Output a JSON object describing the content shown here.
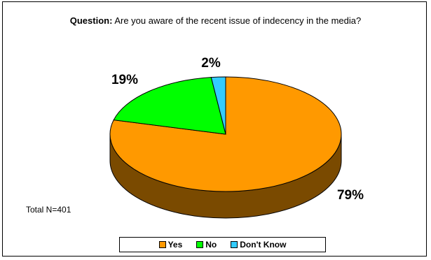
{
  "chart_data": {
    "type": "pie",
    "title_prefix": "Question:",
    "title_text": "Are you aware of the recent issue of indecency in the media?",
    "categories": [
      "Yes",
      "No",
      "Don't Know"
    ],
    "values": [
      79,
      19,
      2
    ],
    "value_labels": [
      "79%",
      "19%",
      "2%"
    ],
    "colors": [
      "#FF9900",
      "#00FF00",
      "#33CCFF"
    ],
    "side_colors": [
      "#7A4A00",
      "#009000",
      "#1D7FA0"
    ],
    "legend_position": "bottom",
    "note": "Total N=401",
    "three_d": true
  }
}
